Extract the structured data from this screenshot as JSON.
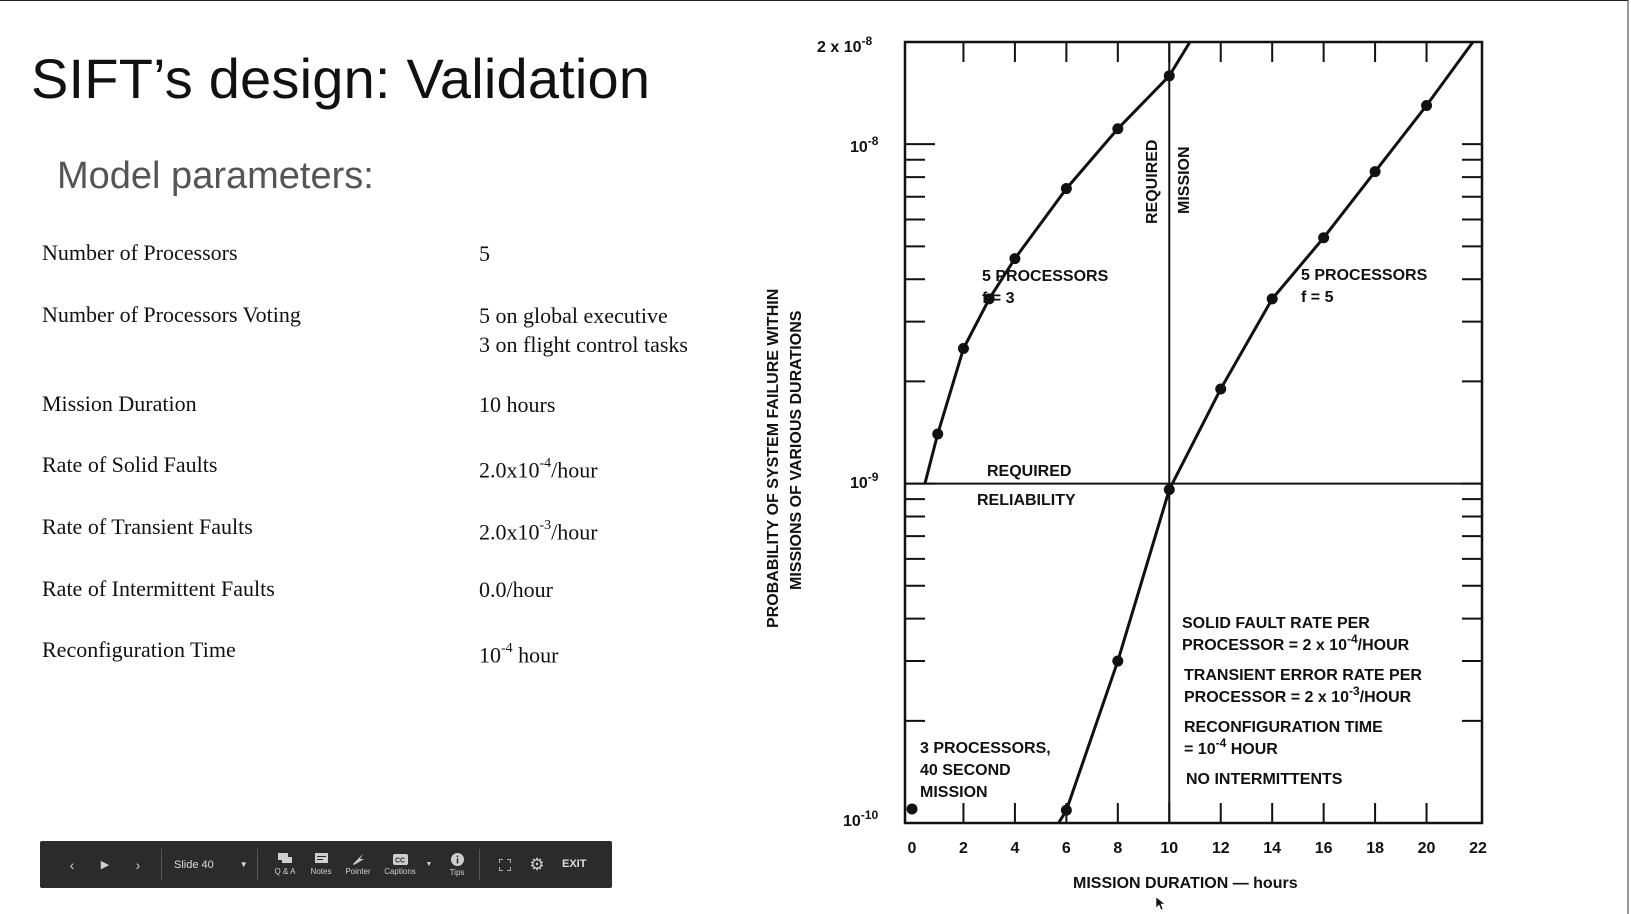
{
  "slide": {
    "title": "SIFT’s design: Validation",
    "subtitle": "Model parameters:"
  },
  "parameters": [
    {
      "name": "Number of Processors",
      "value": [
        "5"
      ]
    },
    {
      "name": "Number of Processors Voting",
      "value": [
        "5 on global executive",
        "3 on flight control tasks"
      ]
    },
    {
      "name": "Mission Duration",
      "value": [
        "10 hours"
      ]
    },
    {
      "name": "Rate of Solid Faults",
      "value_base": "2.0x10",
      "value_exp": "-4",
      "value_unit": "/hour"
    },
    {
      "name": "Rate of Transient Faults",
      "value_base": "2.0x10",
      "value_exp": "-3",
      "value_unit": "/hour"
    },
    {
      "name": "Rate of Intermittent Faults",
      "value": [
        "0.0/hour"
      ]
    },
    {
      "name": "Reconfiguration Time",
      "value_base": "10",
      "value_exp": "-4",
      "value_unit": " hour"
    }
  ],
  "toolbar": {
    "prev": "‹",
    "play": "▶",
    "next": "›",
    "slide_label": "Slide 40",
    "qa_label": "Q & A",
    "notes_label": "Notes",
    "pointer_label": "Pointer",
    "captions_label": "Captions",
    "tips_label": "Tips",
    "exit_label": "EXIT",
    "icons": [
      "chevron-left-icon",
      "play-icon",
      "chevron-right-icon",
      "chevron-down-icon",
      "qa-icon",
      "notes-icon",
      "pointer-icon",
      "captions-icon",
      "info-icon",
      "fullscreen-icon",
      "gear-icon"
    ]
  },
  "chart_data": {
    "type": "line",
    "xlabel": "MISSION DURATION — hours",
    "ylabel_line1": "PROBABILITY OF SYSTEM FAILURE WITHIN",
    "ylabel_line2": "MISSIONS OF VARIOUS DURATIONS",
    "x_ticks": [
      "0",
      "2",
      "4",
      "6",
      "8",
      "10",
      "12",
      "14",
      "16",
      "18",
      "20",
      "22"
    ],
    "xlim": [
      0,
      22
    ],
    "y_scale": "log",
    "ylim": [
      1e-10,
      2e-08
    ],
    "y_tick_labels": [
      {
        "value": 1e-10,
        "base": "10",
        "exp": "-10"
      },
      {
        "value": 1e-09,
        "base": "10",
        "exp": "-9"
      },
      {
        "value": 1e-08,
        "base": "10",
        "exp": "-8"
      },
      {
        "value": 2e-08,
        "base": "2 x 10",
        "exp": "-8"
      }
    ],
    "series": [
      {
        "name": "5 PROCESSORS f = 3",
        "label_line1": "5 PROCESSORS",
        "label_line2": "f = 3",
        "x": [
          0.5,
          1,
          2,
          3,
          4,
          6,
          8,
          10,
          10.8
        ],
        "y": [
          1e-09,
          1.4e-09,
          2.5e-09,
          3.5e-09,
          4.6e-09,
          7.4e-09,
          1.11e-08,
          1.59e-08,
          2e-08
        ],
        "points_x": [
          1,
          2,
          3,
          4,
          6,
          8,
          10
        ]
      },
      {
        "name": "5 PROCESSORS f = 5",
        "label_line1": "5 PROCESSORS",
        "label_line2": "f = 5",
        "x": [
          5.7,
          6,
          8,
          10,
          12,
          14,
          16,
          18,
          20,
          21.8
        ],
        "y": [
          1e-10,
          1.09e-10,
          3e-10,
          9.6e-10,
          1.9e-09,
          3.5e-09,
          5.3e-09,
          8.3e-09,
          1.3e-08,
          2e-08
        ],
        "points_x": [
          6,
          8,
          10,
          12,
          14,
          16,
          18,
          20
        ]
      },
      {
        "name": "3 PROCESSORS, 40 SECOND MISSION",
        "label_lines": [
          "3 PROCESSORS,",
          "40 SECOND",
          "MISSION"
        ],
        "x": [
          0
        ],
        "y": [
          1.1e-10
        ],
        "points_x": [
          0
        ]
      }
    ],
    "reference_lines": {
      "required_reliability": {
        "value": 1e-09,
        "label_above": "REQUIRED",
        "label_below": "RELIABILITY"
      },
      "required_mission": {
        "value": 10,
        "label_left": "REQUIRED",
        "label_right": "MISSION"
      }
    },
    "annotations": [
      {
        "lines": [
          "SOLID FAULT RATE PER",
          "PROCESSOR = 2 x 10",
          "-4",
          "/HOUR"
        ]
      },
      {
        "lines": [
          "TRANSIENT ERROR RATE PER",
          "PROCESSOR = 2 x 10",
          "-3",
          "/HOUR"
        ]
      },
      {
        "lines": [
          "RECONFIGURATION TIME",
          "= 10",
          "-4",
          " HOUR"
        ]
      },
      {
        "lines": [
          "NO INTERMITTENTS"
        ]
      }
    ]
  }
}
